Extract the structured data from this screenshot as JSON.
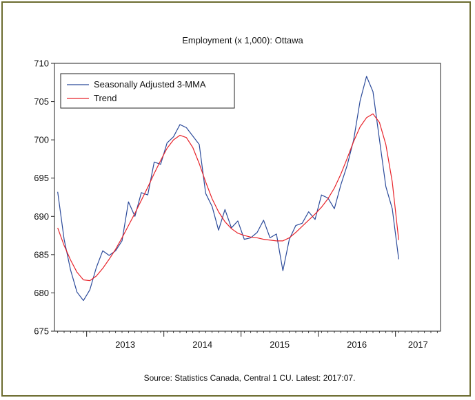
{
  "chart_data": {
    "type": "line",
    "title": "Employment (x 1,000): Ottawa",
    "source": "Source: Statistics Canada, Central 1 CU. Latest: 2017:07.",
    "xlabel": "",
    "ylabel": "",
    "ylim": [
      675,
      710
    ],
    "yticks": [
      675,
      680,
      685,
      690,
      695,
      700,
      705,
      710
    ],
    "year_labels": [
      "2013",
      "2014",
      "2015",
      "2016",
      "2017"
    ],
    "x_start": "2012-08",
    "x_end": "2017-07",
    "legend_position": "top-left",
    "grid": false,
    "colors": {
      "sa": "#2b4a9a",
      "trend": "#e8232a",
      "frame": "#6b6b2e"
    },
    "series": [
      {
        "name": "Seasonally Adjusted 3-MMA",
        "values": [
          693.2,
          687.0,
          683.0,
          680.1,
          679.0,
          680.4,
          683.3,
          685.5,
          684.9,
          685.5,
          686.8,
          691.9,
          690.0,
          693.1,
          692.8,
          697.1,
          696.8,
          699.6,
          700.4,
          702.0,
          701.6,
          700.5,
          699.4,
          693.0,
          691.3,
          688.2,
          690.9,
          688.5,
          689.4,
          687.0,
          687.2,
          687.9,
          689.5,
          687.2,
          687.7,
          682.9,
          687.0,
          688.8,
          689.1,
          690.6,
          689.6,
          692.8,
          692.4,
          691.0,
          694.1,
          696.7,
          700.0,
          705.1,
          708.3,
          706.3,
          700.1,
          693.9,
          691.0,
          684.4
        ]
      },
      {
        "name": "Trend",
        "values": [
          688.5,
          686.2,
          684.3,
          682.7,
          681.7,
          681.6,
          682.2,
          683.2,
          684.4,
          685.7,
          687.2,
          688.8,
          690.4,
          692.1,
          693.8,
          695.6,
          697.3,
          698.9,
          700.0,
          700.6,
          700.3,
          699.0,
          696.9,
          694.5,
          692.3,
          690.6,
          689.3,
          688.4,
          687.8,
          687.5,
          687.3,
          687.2,
          687.0,
          686.9,
          686.8,
          686.8,
          687.2,
          687.9,
          688.7,
          689.5,
          690.3,
          691.2,
          692.3,
          693.7,
          695.5,
          697.6,
          699.8,
          701.7,
          702.9,
          703.4,
          702.3,
          699.4,
          694.5,
          686.9
        ]
      }
    ]
  }
}
